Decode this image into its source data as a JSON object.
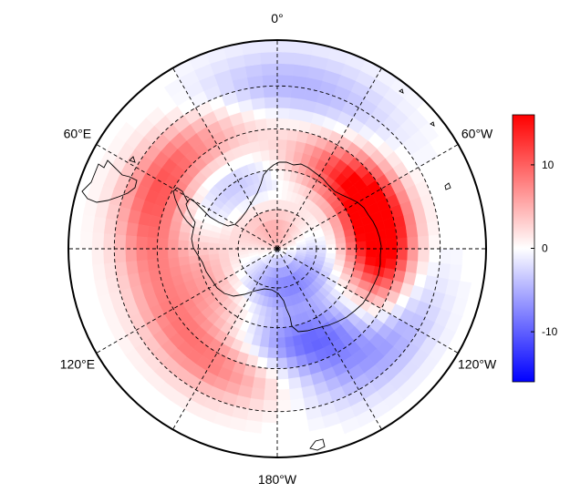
{
  "map": {
    "projection": "south-polar-stereographic",
    "longitude_labels": [
      {
        "lon": 0,
        "text": "0°"
      },
      {
        "lon": 60,
        "text": "60°E"
      },
      {
        "lon": 120,
        "text": "120°E"
      },
      {
        "lon": 180,
        "text": "180°W"
      },
      {
        "lon": -120,
        "text": "120°W"
      },
      {
        "lon": -60,
        "text": "60°W"
      }
    ],
    "meridians_deg": [
      0,
      30,
      60,
      90,
      120,
      150,
      180,
      210,
      240,
      270,
      300,
      330
    ],
    "latitude_circles_deg": [
      -80,
      -70,
      -60,
      -50
    ],
    "boundary_latitude_deg": -40,
    "anomaly_field": [
      {
        "name": "amundsen-bellingshausen-high",
        "lon": -95,
        "lat": -62,
        "value": 13
      },
      {
        "name": "antarctic-peninsula-high",
        "lon": -70,
        "lat": -66,
        "value": 15
      },
      {
        "name": "ross-sea-low",
        "lon": -150,
        "lat": -65,
        "value": -14
      },
      {
        "name": "ross-ice-shelf-low",
        "lon": -170,
        "lat": -80,
        "value": -9
      },
      {
        "name": "pacific-sector-low",
        "lon": -130,
        "lat": -55,
        "value": -7
      },
      {
        "name": "south-of-australia-high",
        "lon": 150,
        "lat": -58,
        "value": 9
      },
      {
        "name": "wilkes-land-high",
        "lon": 120,
        "lat": -70,
        "value": 6
      },
      {
        "name": "indian-ocean-high",
        "lon": 60,
        "lat": -57,
        "value": 11
      },
      {
        "name": "east-antarctica-high",
        "lon": 100,
        "lat": -78,
        "value": 4
      },
      {
        "name": "dronning-maud-low",
        "lon": 45,
        "lat": -72,
        "value": -6
      },
      {
        "name": "weddell-sector-low",
        "lon": -5,
        "lat": -50,
        "value": -5
      },
      {
        "name": "polar-high",
        "lon": 0,
        "lat": -86,
        "value": 5
      }
    ]
  },
  "colorbar": {
    "min": -16,
    "max": 16,
    "colors": {
      "negative": "#0000ff",
      "neutral": "#ffffff",
      "positive": "#ff0000"
    },
    "ticks": [
      {
        "value": 10,
        "label": "10"
      },
      {
        "value": 0,
        "label": "0"
      },
      {
        "value": -10,
        "label": "-10"
      }
    ]
  }
}
